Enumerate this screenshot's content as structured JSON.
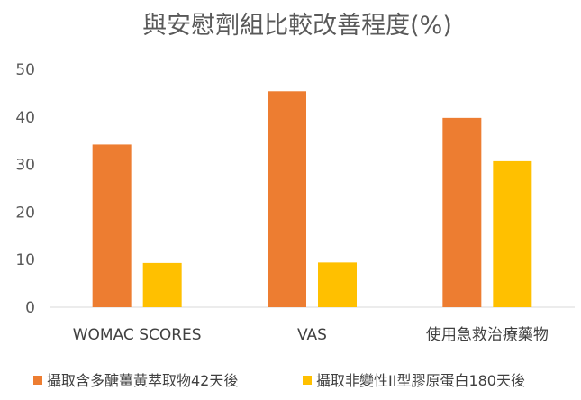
{
  "chart_data": {
    "type": "bar",
    "title": "與安慰劑組比較改善程度(%)",
    "categories": [
      "WOMAC SCORES",
      "VAS",
      "使用急救治療藥物"
    ],
    "series": [
      {
        "name": "攝取含多醣薑黃萃取物42天後",
        "color": "#ED7D31",
        "values": [
          34.2,
          45.4,
          39.8
        ]
      },
      {
        "name": "攝取非變性II型膠原蛋白180天後",
        "color": "#FFC000",
        "values": [
          9.3,
          9.4,
          30.7
        ]
      }
    ],
    "y_ticks": [
      0,
      10,
      20,
      30,
      40,
      50
    ],
    "ylim": [
      0,
      50
    ],
    "xlabel": "",
    "ylabel": "",
    "grid": false,
    "legend_position": "bottom"
  }
}
